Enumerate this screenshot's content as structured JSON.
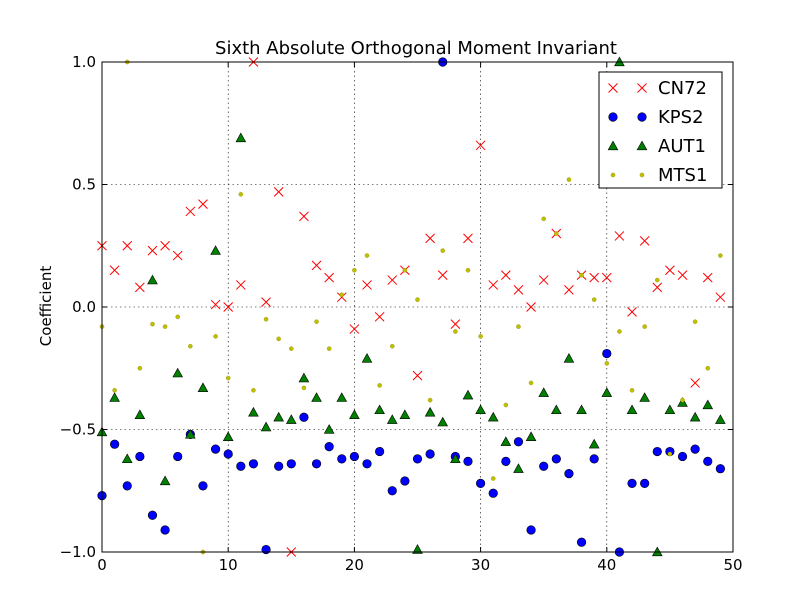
{
  "chart_data": {
    "type": "scatter",
    "title": "Sixth Absolute Orthogonal Moment Invariant",
    "xlabel": "",
    "ylabel": "Coefficient",
    "xlim": [
      0,
      50
    ],
    "ylim": [
      -1.0,
      1.0
    ],
    "xticks": [
      0,
      10,
      20,
      30,
      40,
      50
    ],
    "xtick_labels": [
      "0",
      "10",
      "20",
      "30",
      "40",
      "50"
    ],
    "yticks": [
      -1.0,
      -0.5,
      0.0,
      0.5,
      1.0
    ],
    "ytick_labels": [
      "−1.0",
      "−0.5",
      "0.0",
      "0.5",
      "1.0"
    ],
    "grid": true,
    "legend_position": "top-right",
    "x": [
      0,
      1,
      2,
      3,
      4,
      5,
      6,
      7,
      8,
      9,
      10,
      11,
      12,
      13,
      14,
      15,
      16,
      17,
      18,
      19,
      20,
      21,
      22,
      23,
      24,
      25,
      26,
      27,
      28,
      29,
      30,
      31,
      32,
      33,
      34,
      35,
      36,
      37,
      38,
      39,
      40,
      41,
      42,
      43,
      44,
      45,
      46,
      47,
      48,
      49
    ],
    "series": [
      {
        "name": "CN72",
        "marker": "x",
        "color": "#ff0000",
        "values": [
          0.25,
          0.15,
          0.25,
          0.08,
          0.23,
          0.25,
          0.21,
          0.39,
          0.42,
          0.01,
          0.0,
          0.09,
          1.0,
          0.02,
          0.47,
          -1.0,
          0.37,
          0.17,
          0.12,
          0.04,
          -0.09,
          0.09,
          -0.04,
          0.11,
          0.15,
          -0.28,
          0.28,
          0.13,
          -0.07,
          0.28,
          0.66,
          0.09,
          0.13,
          0.07,
          0.0,
          0.11,
          0.3,
          0.07,
          0.13,
          0.12,
          0.12,
          0.29,
          -0.02,
          0.27,
          0.08,
          0.15,
          0.13,
          -0.31,
          0.12,
          0.04
        ]
      },
      {
        "name": "KPS2",
        "marker": "circle",
        "color": "#0000ff",
        "values": [
          -0.77,
          -0.56,
          -0.73,
          -0.61,
          -0.85,
          -0.91,
          -0.61,
          -0.52,
          -0.73,
          -0.58,
          -0.6,
          -0.65,
          -0.64,
          -0.99,
          -0.65,
          -0.64,
          -0.45,
          -0.64,
          -0.57,
          -0.62,
          -0.61,
          -0.64,
          -0.59,
          -0.75,
          -0.71,
          -0.62,
          -0.6,
          1.0,
          -0.61,
          -0.63,
          -0.72,
          -0.76,
          -0.63,
          -0.55,
          -0.91,
          -0.65,
          -0.62,
          -0.68,
          -0.96,
          -0.62,
          -0.19,
          -1.0,
          -0.72,
          -0.72,
          -0.59,
          -0.59,
          -0.61,
          -0.58,
          -0.63,
          -0.66
        ]
      },
      {
        "name": "AUT1",
        "marker": "triangle",
        "color": "#007f00",
        "values": [
          -0.51,
          -0.37,
          -0.62,
          -0.44,
          0.11,
          -0.71,
          -0.27,
          -0.52,
          -0.33,
          0.23,
          -0.53,
          0.69,
          -0.43,
          -0.49,
          -0.45,
          -0.46,
          -0.29,
          -0.37,
          -0.5,
          -0.37,
          -0.44,
          -0.21,
          -0.42,
          -0.46,
          -0.44,
          -0.99,
          -0.43,
          -0.47,
          -0.62,
          -0.36,
          -0.42,
          -0.45,
          -0.55,
          -0.66,
          -0.53,
          -0.35,
          -0.42,
          -0.21,
          -0.42,
          -0.56,
          -0.35,
          1.0,
          -0.42,
          -0.37,
          -1.0,
          -0.42,
          -0.39,
          -0.45,
          -0.4,
          -0.46
        ]
      },
      {
        "name": "MTS1",
        "marker": "dot",
        "color": "#bfbf00",
        "values": [
          -0.08,
          -0.34,
          1.0,
          -0.25,
          -0.07,
          -0.08,
          -0.04,
          -0.16,
          -1.0,
          -0.12,
          -0.29,
          0.46,
          -0.34,
          -0.05,
          -0.13,
          -0.17,
          -0.33,
          -0.06,
          -0.17,
          0.05,
          0.15,
          0.21,
          -0.32,
          -0.16,
          0.15,
          0.03,
          -0.38,
          0.23,
          -0.1,
          0.15,
          -0.12,
          -0.7,
          -0.4,
          -0.08,
          -0.31,
          0.36,
          0.3,
          0.52,
          0.13,
          0.03,
          -0.23,
          -0.1,
          -0.34,
          -0.08,
          0.11,
          -0.6,
          -0.38,
          -0.06,
          -0.25,
          0.21
        ]
      }
    ]
  }
}
